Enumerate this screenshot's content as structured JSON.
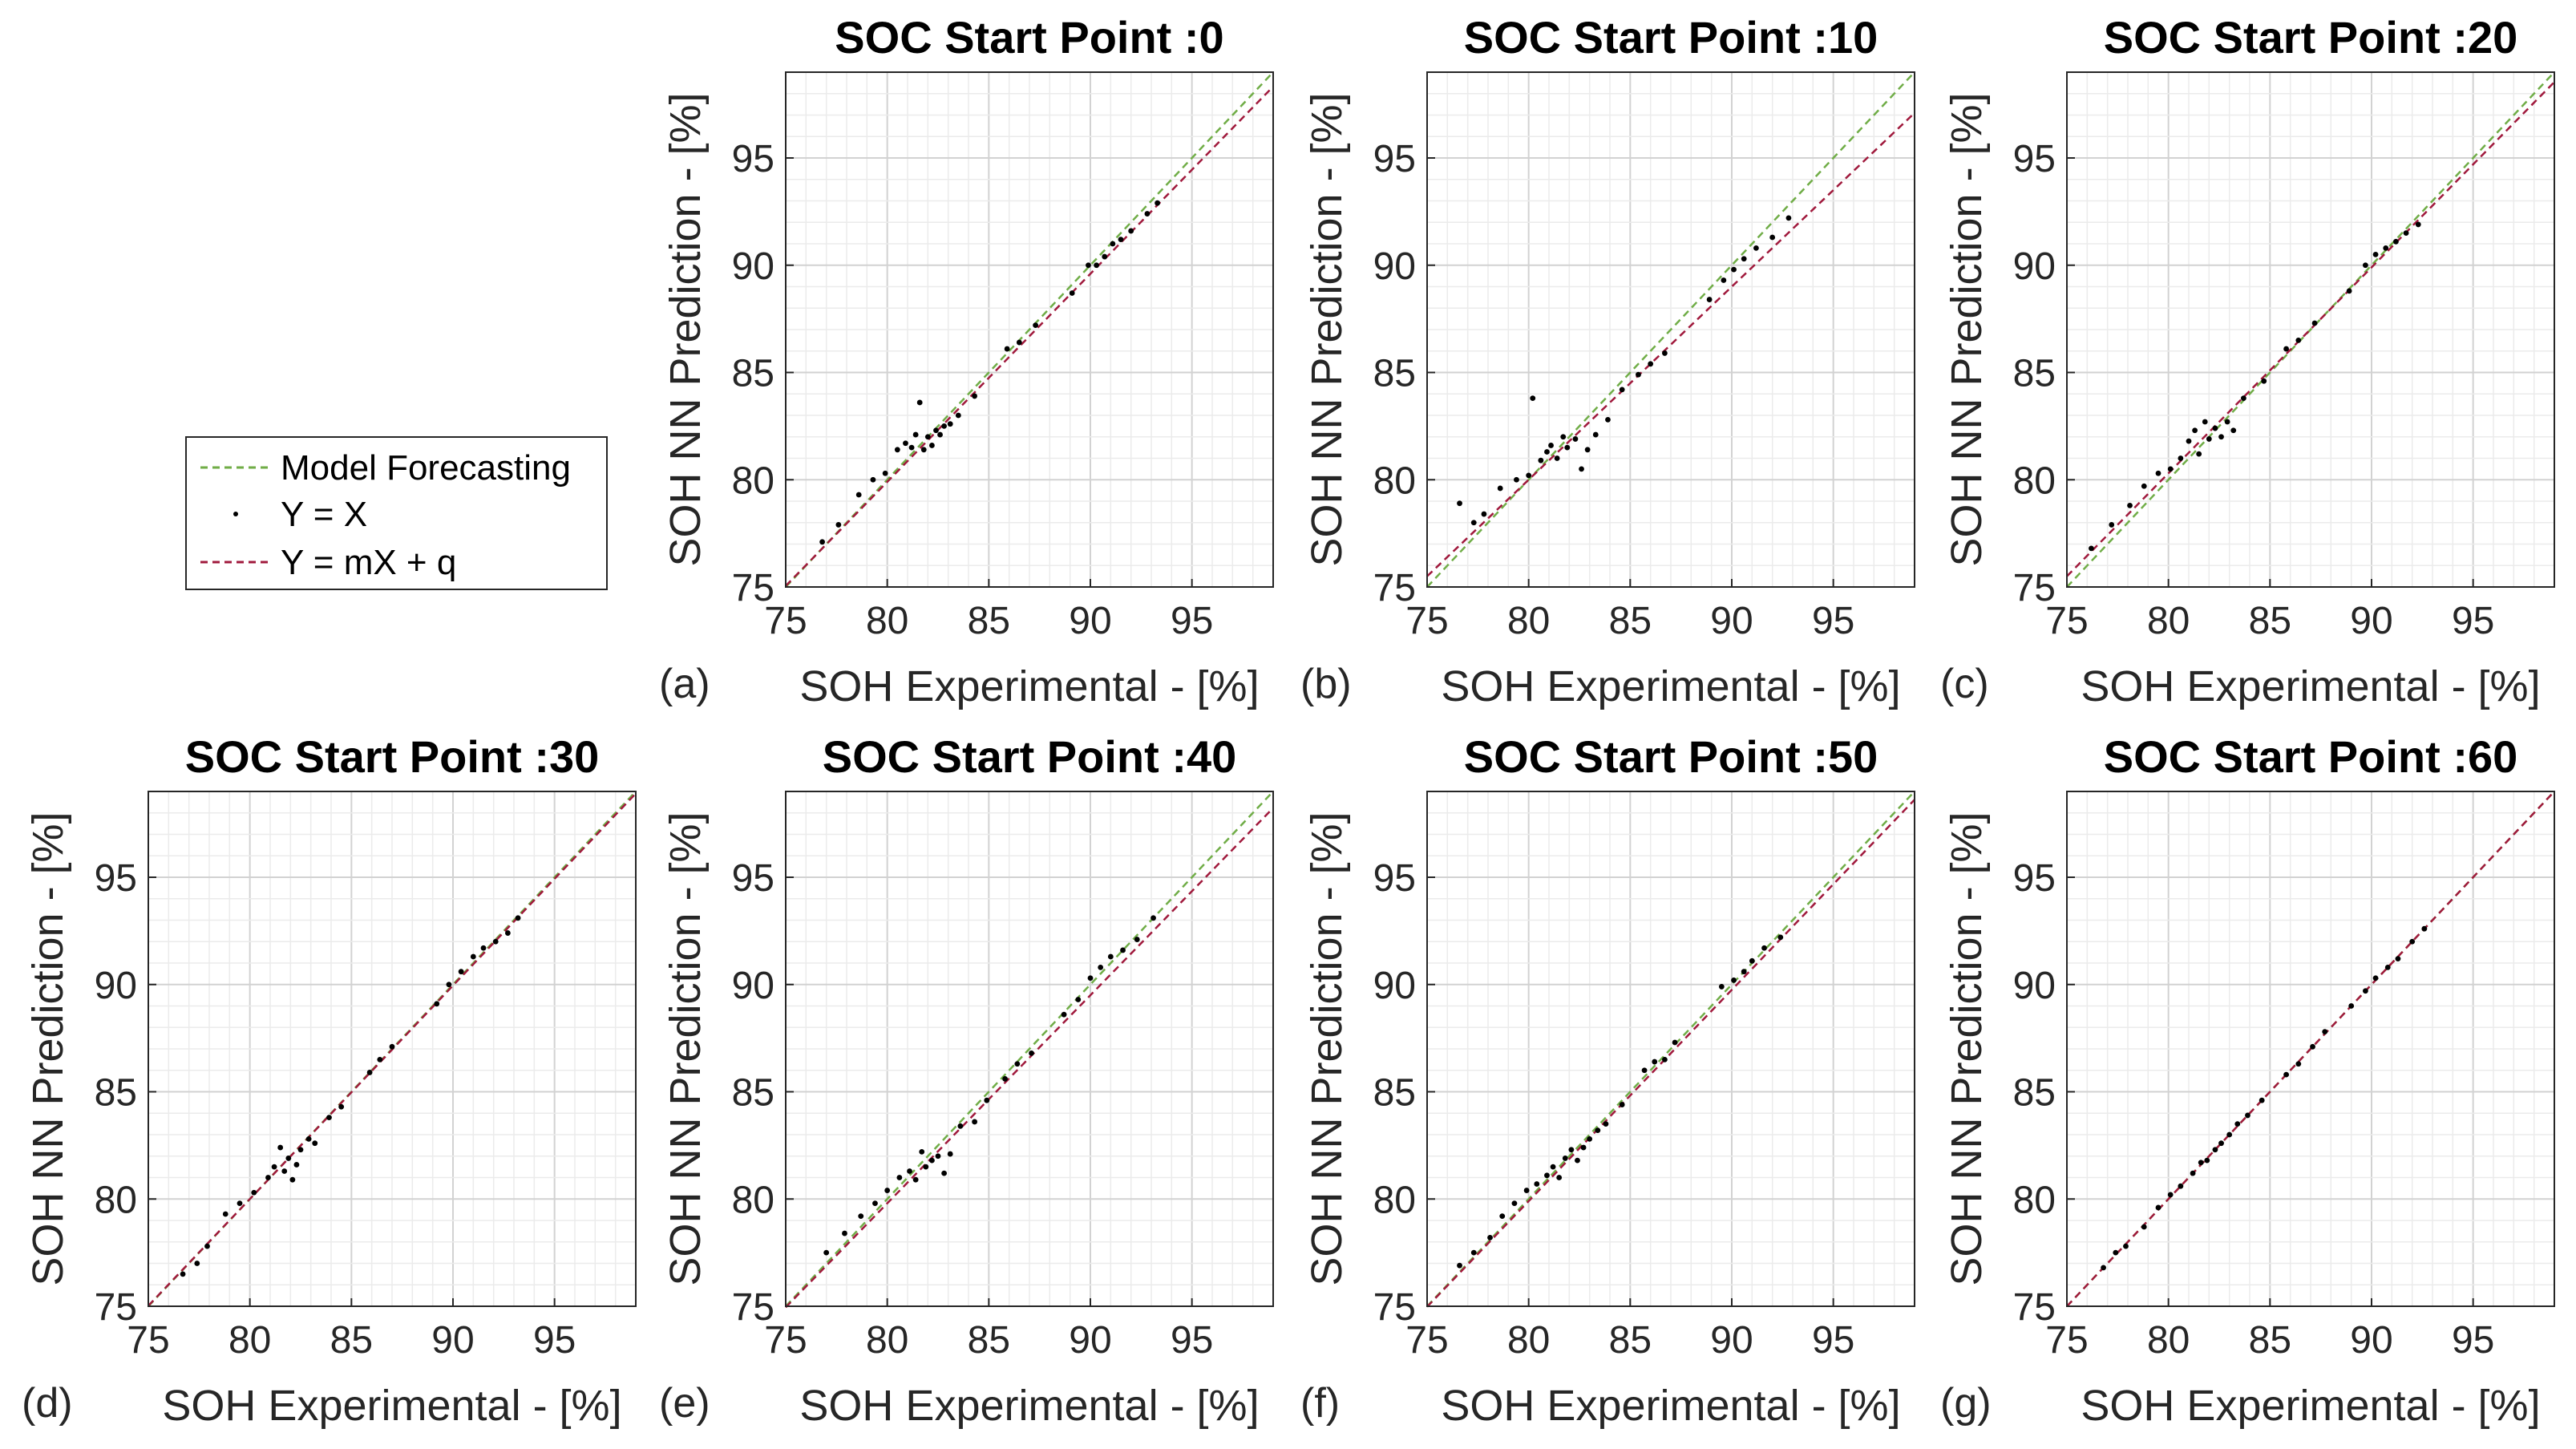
{
  "legend": {
    "entries": [
      {
        "label": "Model Forecasting",
        "color": "#70AD47",
        "style": "dashed"
      },
      {
        "label": "Y = X",
        "color": "#000000",
        "style": "marker"
      },
      {
        "label": "Y = mX + q",
        "color": "#A0193C",
        "style": "dashed"
      }
    ]
  },
  "colors": {
    "model_forecasting": "#70AD47",
    "fit_line": "#A0193C",
    "points": "#000000",
    "grid": "#DCDCDC",
    "axes": "#262626"
  },
  "chart_data": [
    {
      "type": "scatter",
      "panel_label": "(a)",
      "title": "SOC Start Point :0",
      "xlabel": "SOH Experimental - [%]",
      "ylabel": "SOH NN Prediction - [%]",
      "xlim": [
        75,
        99
      ],
      "ylim": [
        75,
        99
      ],
      "xticks": [
        "75",
        "80",
        "85",
        "90",
        "95"
      ],
      "yticks": [
        "75",
        "80",
        "85",
        "90",
        "95"
      ],
      "grid": true,
      "minor_grid": true,
      "fit": {
        "m": 0.97,
        "q": 2.3
      },
      "points": [
        [
          76.8,
          77.1
        ],
        [
          77.6,
          77.9
        ],
        [
          78.6,
          79.3
        ],
        [
          79.3,
          80.0
        ],
        [
          79.9,
          80.3
        ],
        [
          80.5,
          81.4
        ],
        [
          80.9,
          81.7
        ],
        [
          81.2,
          81.5
        ],
        [
          81.4,
          82.1
        ],
        [
          81.6,
          83.6
        ],
        [
          81.8,
          81.4
        ],
        [
          82.0,
          82.0
        ],
        [
          82.2,
          81.6
        ],
        [
          82.4,
          82.3
        ],
        [
          82.6,
          82.1
        ],
        [
          82.8,
          82.5
        ],
        [
          83.1,
          82.6
        ],
        [
          83.5,
          83.0
        ],
        [
          84.3,
          83.9
        ],
        [
          85.9,
          86.1
        ],
        [
          86.5,
          86.4
        ],
        [
          87.3,
          87.2
        ],
        [
          89.1,
          88.7
        ],
        [
          89.9,
          90.0
        ],
        [
          90.3,
          90.0
        ],
        [
          90.7,
          90.4
        ],
        [
          91.1,
          91.0
        ],
        [
          91.5,
          91.2
        ],
        [
          92.0,
          91.6
        ],
        [
          92.8,
          92.4
        ],
        [
          93.3,
          92.9
        ]
      ]
    },
    {
      "type": "scatter",
      "panel_label": "(b)",
      "title": "SOC Start Point :10",
      "xlabel": "SOH Experimental - [%]",
      "ylabel": "SOH NN Prediction - [%]",
      "xlim": [
        75,
        99
      ],
      "ylim": [
        75,
        99
      ],
      "xticks": [
        "75",
        "80",
        "85",
        "90",
        "95"
      ],
      "yticks": [
        "75",
        "80",
        "85",
        "90",
        "95"
      ],
      "grid": true,
      "minor_grid": true,
      "fit": {
        "m": 0.9,
        "q": 8.0
      },
      "points": [
        [
          76.6,
          78.9
        ],
        [
          77.3,
          78.0
        ],
        [
          77.8,
          78.4
        ],
        [
          78.6,
          79.6
        ],
        [
          79.4,
          80.0
        ],
        [
          80.0,
          80.2
        ],
        [
          80.2,
          83.8
        ],
        [
          80.6,
          80.9
        ],
        [
          80.9,
          81.3
        ],
        [
          81.1,
          81.6
        ],
        [
          81.4,
          81.0
        ],
        [
          81.7,
          82.0
        ],
        [
          81.9,
          81.5
        ],
        [
          82.3,
          81.9
        ],
        [
          82.6,
          80.5
        ],
        [
          82.9,
          81.4
        ],
        [
          83.3,
          82.1
        ],
        [
          83.9,
          82.8
        ],
        [
          84.6,
          84.2
        ],
        [
          85.4,
          84.9
        ],
        [
          86.0,
          85.4
        ],
        [
          86.7,
          85.9
        ],
        [
          88.9,
          88.4
        ],
        [
          89.6,
          89.3
        ],
        [
          90.1,
          89.8
        ],
        [
          90.6,
          90.3
        ],
        [
          91.2,
          90.8
        ],
        [
          92.0,
          91.3
        ],
        [
          92.8,
          92.2
        ]
      ]
    },
    {
      "type": "scatter",
      "panel_label": "(c)",
      "title": "SOC Start Point :20",
      "xlabel": "SOH Experimental - [%]",
      "ylabel": "SOH NN Prediction - [%]",
      "xlim": [
        75,
        99
      ],
      "ylim": [
        75,
        99
      ],
      "xticks": [
        "75",
        "80",
        "85",
        "90",
        "95"
      ],
      "yticks": [
        "75",
        "80",
        "85",
        "90",
        "95"
      ],
      "grid": true,
      "minor_grid": true,
      "fit": {
        "m": 0.96,
        "q": 3.5
      },
      "points": [
        [
          76.2,
          76.8
        ],
        [
          77.2,
          77.9
        ],
        [
          78.1,
          78.8
        ],
        [
          78.8,
          79.7
        ],
        [
          79.5,
          80.3
        ],
        [
          80.1,
          80.5
        ],
        [
          80.6,
          81.0
        ],
        [
          81.0,
          81.8
        ],
        [
          81.3,
          82.3
        ],
        [
          81.5,
          81.2
        ],
        [
          81.8,
          82.7
        ],
        [
          82.0,
          81.9
        ],
        [
          82.3,
          82.4
        ],
        [
          82.6,
          82.0
        ],
        [
          82.9,
          82.7
        ],
        [
          83.2,
          82.3
        ],
        [
          83.7,
          83.8
        ],
        [
          84.7,
          84.6
        ],
        [
          85.8,
          86.1
        ],
        [
          86.4,
          86.5
        ],
        [
          87.2,
          87.3
        ],
        [
          88.9,
          88.8
        ],
        [
          89.7,
          90.0
        ],
        [
          90.2,
          90.5
        ],
        [
          90.7,
          90.8
        ],
        [
          91.2,
          91.1
        ],
        [
          91.7,
          91.5
        ],
        [
          92.3,
          91.9
        ]
      ]
    },
    {
      "type": "scatter",
      "panel_label": "(d)",
      "title": "SOC Start Point :30",
      "xlabel": "SOH Experimental - [%]",
      "ylabel": "SOH NN Prediction - [%]",
      "xlim": [
        75,
        99
      ],
      "ylim": [
        75,
        99
      ],
      "xticks": [
        "75",
        "80",
        "85",
        "90",
        "95"
      ],
      "yticks": [
        "75",
        "80",
        "85",
        "90",
        "95"
      ],
      "grid": true,
      "minor_grid": true,
      "fit": {
        "m": 0.995,
        "q": 0.4
      },
      "points": [
        [
          76.7,
          76.5
        ],
        [
          77.4,
          77.0
        ],
        [
          77.9,
          77.8
        ],
        [
          78.8,
          79.3
        ],
        [
          79.5,
          79.8
        ],
        [
          80.2,
          80.3
        ],
        [
          80.9,
          81.0
        ],
        [
          81.2,
          81.5
        ],
        [
          81.5,
          82.4
        ],
        [
          81.7,
          81.3
        ],
        [
          81.9,
          81.9
        ],
        [
          82.1,
          80.9
        ],
        [
          82.3,
          81.6
        ],
        [
          82.5,
          82.3
        ],
        [
          82.9,
          82.8
        ],
        [
          83.2,
          82.6
        ],
        [
          83.9,
          83.8
        ],
        [
          84.5,
          84.3
        ],
        [
          85.9,
          85.9
        ],
        [
          86.4,
          86.5
        ],
        [
          87.0,
          87.1
        ],
        [
          89.2,
          89.1
        ],
        [
          89.8,
          90.0
        ],
        [
          90.4,
          90.6
        ],
        [
          91.0,
          91.3
        ],
        [
          91.5,
          91.7
        ],
        [
          92.1,
          92.0
        ],
        [
          92.7,
          92.4
        ],
        [
          93.2,
          93.1
        ]
      ]
    },
    {
      "type": "scatter",
      "panel_label": "(e)",
      "title": "SOC Start Point :40",
      "xlabel": "SOH Experimental - [%]",
      "ylabel": "SOH NN Prediction - [%]",
      "xlim": [
        75,
        99
      ],
      "ylim": [
        75,
        99
      ],
      "xticks": [
        "75",
        "80",
        "85",
        "90",
        "95"
      ],
      "yticks": [
        "75",
        "80",
        "85",
        "90",
        "95"
      ],
      "grid": true,
      "minor_grid": true,
      "fit": {
        "m": 0.97,
        "q": 2.2
      },
      "points": [
        [
          77.0,
          77.5
        ],
        [
          77.9,
          78.4
        ],
        [
          78.7,
          79.2
        ],
        [
          79.4,
          79.8
        ],
        [
          80.0,
          80.4
        ],
        [
          80.6,
          81.0
        ],
        [
          81.1,
          81.3
        ],
        [
          81.4,
          80.9
        ],
        [
          81.7,
          82.2
        ],
        [
          81.9,
          81.5
        ],
        [
          82.2,
          81.8
        ],
        [
          82.5,
          82.0
        ],
        [
          82.8,
          81.2
        ],
        [
          83.1,
          82.1
        ],
        [
          83.6,
          83.4
        ],
        [
          84.3,
          83.6
        ],
        [
          84.9,
          84.6
        ],
        [
          85.8,
          85.6
        ],
        [
          86.4,
          86.3
        ],
        [
          87.1,
          86.8
        ],
        [
          88.7,
          88.6
        ],
        [
          89.4,
          89.3
        ],
        [
          90.0,
          90.3
        ],
        [
          90.5,
          90.8
        ],
        [
          91.0,
          91.3
        ],
        [
          91.6,
          91.6
        ],
        [
          92.3,
          92.1
        ],
        [
          93.1,
          93.1
        ]
      ]
    },
    {
      "type": "scatter",
      "panel_label": "(f)",
      "title": "SOC Start Point :50",
      "xlabel": "SOH Experimental - [%]",
      "ylabel": "SOH NN Prediction - [%]",
      "xlim": [
        75,
        99
      ],
      "ylim": [
        75,
        99
      ],
      "xticks": [
        "75",
        "80",
        "85",
        "90",
        "95"
      ],
      "yticks": [
        "75",
        "80",
        "85",
        "90",
        "95"
      ],
      "grid": true,
      "minor_grid": true,
      "fit": {
        "m": 0.985,
        "q": 1.1
      },
      "points": [
        [
          76.6,
          76.9
        ],
        [
          77.3,
          77.5
        ],
        [
          78.1,
          78.2
        ],
        [
          78.7,
          79.2
        ],
        [
          79.3,
          79.8
        ],
        [
          79.9,
          80.4
        ],
        [
          80.4,
          80.7
        ],
        [
          80.9,
          81.1
        ],
        [
          81.2,
          81.5
        ],
        [
          81.5,
          81.0
        ],
        [
          81.8,
          81.9
        ],
        [
          82.1,
          82.3
        ],
        [
          82.4,
          81.8
        ],
        [
          82.7,
          82.4
        ],
        [
          83.0,
          82.8
        ],
        [
          83.4,
          83.2
        ],
        [
          83.8,
          83.5
        ],
        [
          84.6,
          84.4
        ],
        [
          85.7,
          86.0
        ],
        [
          86.2,
          86.4
        ],
        [
          86.7,
          86.5
        ],
        [
          87.2,
          87.3
        ],
        [
          89.5,
          89.9
        ],
        [
          90.1,
          90.2
        ],
        [
          90.6,
          90.6
        ],
        [
          91.0,
          91.1
        ],
        [
          91.6,
          91.7
        ],
        [
          92.4,
          92.2
        ]
      ]
    },
    {
      "type": "scatter",
      "panel_label": "(g)",
      "title": "SOC Start Point :60",
      "xlabel": "SOH Experimental - [%]",
      "ylabel": "SOH NN Prediction - [%]",
      "xlim": [
        75,
        99
      ],
      "ylim": [
        75,
        99
      ],
      "xticks": [
        "75",
        "80",
        "85",
        "90",
        "95"
      ],
      "yticks": [
        "75",
        "80",
        "85",
        "90",
        "95"
      ],
      "grid": true,
      "minor_grid": true,
      "fit": {
        "m": 1.0,
        "q": 0.0
      },
      "points": [
        [
          76.8,
          76.8
        ],
        [
          77.4,
          77.5
        ],
        [
          77.9,
          77.8
        ],
        [
          78.8,
          78.7
        ],
        [
          79.5,
          79.6
        ],
        [
          80.1,
          80.2
        ],
        [
          80.6,
          80.6
        ],
        [
          81.2,
          81.2
        ],
        [
          81.6,
          81.7
        ],
        [
          81.9,
          81.8
        ],
        [
          82.3,
          82.3
        ],
        [
          82.6,
          82.6
        ],
        [
          83.0,
          83.0
        ],
        [
          83.4,
          83.5
        ],
        [
          83.9,
          83.9
        ],
        [
          84.6,
          84.6
        ],
        [
          85.8,
          85.8
        ],
        [
          86.4,
          86.3
        ],
        [
          87.1,
          87.1
        ],
        [
          87.7,
          87.8
        ],
        [
          89.0,
          89.0
        ],
        [
          89.7,
          89.7
        ],
        [
          90.2,
          90.3
        ],
        [
          90.8,
          90.8
        ],
        [
          91.3,
          91.2
        ],
        [
          92.0,
          92.0
        ],
        [
          92.6,
          92.6
        ]
      ]
    }
  ]
}
